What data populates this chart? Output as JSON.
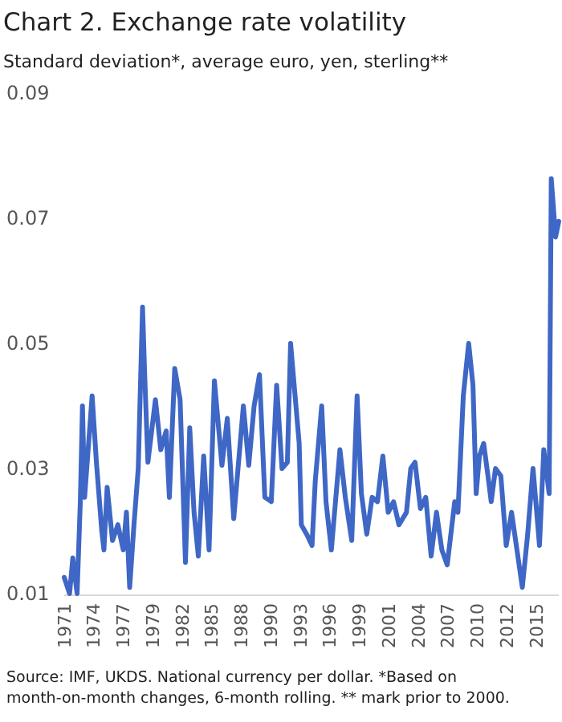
{
  "chart_data": {
    "type": "line",
    "title": "Chart 2. Exchange rate volatility",
    "subtitle": "Standard deviation*, average euro, yen, sterling**",
    "annotations": [
      "Source: IMF, UKDS. National currency  per dollar. *Based on month-on-month changes,  6-month rolling. ** mark prior to 2000."
    ],
    "xlim": [
      1971,
      2017.1
    ],
    "ylim": [
      0.01,
      0.09
    ],
    "yticks": [
      0.01,
      0.03,
      0.05,
      0.07,
      0.09
    ],
    "xticks": [
      {
        "value": 1971,
        "label": "1971"
      },
      {
        "value": 1973.75,
        "label": "1974"
      },
      {
        "value": 1976.5,
        "label": "1977"
      },
      {
        "value": 1979.25,
        "label": "1979"
      },
      {
        "value": 1982,
        "label": "1982"
      },
      {
        "value": 1984.75,
        "label": "1985"
      },
      {
        "value": 1987.5,
        "label": "1988"
      },
      {
        "value": 1990.25,
        "label": "1990"
      },
      {
        "value": 1993,
        "label": "1993"
      },
      {
        "value": 1995.75,
        "label": "1996"
      },
      {
        "value": 1998.5,
        "label": "1999"
      },
      {
        "value": 2001.25,
        "label": "2001"
      },
      {
        "value": 2004,
        "label": "2004"
      },
      {
        "value": 2006.75,
        "label": "2007"
      },
      {
        "value": 2009.5,
        "label": "2010"
      },
      {
        "value": 2012.25,
        "label": "2012"
      },
      {
        "value": 2015,
        "label": "2015"
      }
    ],
    "grid": false,
    "marker": "none",
    "line_style": "solid",
    "series": [
      {
        "color": "#3f67c6",
        "x": [
          1971.0,
          1971.5,
          1971.8,
          1972.2,
          1972.5,
          1972.7,
          1972.9,
          1973.6,
          1974.0,
          1974.5,
          1974.7,
          1975.0,
          1975.5,
          1976.0,
          1976.5,
          1976.8,
          1977.1,
          1977.5,
          1977.9,
          1978.3,
          1978.5,
          1978.8,
          1979.5,
          1980.0,
          1980.5,
          1980.8,
          1981.3,
          1981.8,
          1982.3,
          1982.7,
          1983.1,
          1983.5,
          1984.0,
          1984.5,
          1985.0,
          1985.7,
          1986.2,
          1986.8,
          1987.7,
          1988.2,
          1988.7,
          1989.2,
          1989.7,
          1990.3,
          1990.8,
          1991.3,
          1991.8,
          1992.1,
          1992.6,
          1992.9,
          1993.1,
          1993.6,
          1994.1,
          1994.4,
          1995.0,
          1995.4,
          1995.9,
          1996.7,
          1997.2,
          1997.8,
          1998.3,
          1998.7,
          1999.2,
          1999.7,
          2000.2,
          2000.7,
          2001.2,
          2001.7,
          2002.2,
          2002.9,
          2003.3,
          2003.7,
          2004.2,
          2004.7,
          2005.2,
          2005.7,
          2006.2,
          2006.7,
          2007.4,
          2007.7,
          2008.2,
          2008.7,
          2009.1,
          2009.4,
          2009.7,
          2010.1,
          2010.5,
          2010.8,
          2011.2,
          2011.7,
          2012.2,
          2012.7,
          2013.2,
          2013.7,
          2014.2,
          2014.7,
          2015.3,
          2015.7,
          2016.2,
          2016.4,
          2016.8,
          2017.1
        ],
        "values": [
          0.0126,
          0.01,
          0.0157,
          0.01,
          0.0247,
          0.04,
          0.0254,
          0.0416,
          0.031,
          0.02,
          0.017,
          0.027,
          0.0185,
          0.021,
          0.017,
          0.023,
          0.011,
          0.021,
          0.03,
          0.0558,
          0.045,
          0.031,
          0.041,
          0.033,
          0.036,
          0.0254,
          0.046,
          0.041,
          0.015,
          0.0365,
          0.023,
          0.016,
          0.032,
          0.017,
          0.044,
          0.0305,
          0.038,
          0.022,
          0.04,
          0.0305,
          0.04,
          0.045,
          0.0254,
          0.0247,
          0.0433,
          0.03,
          0.031,
          0.05,
          0.04,
          0.034,
          0.021,
          0.0195,
          0.0177,
          0.028,
          0.04,
          0.0247,
          0.017,
          0.033,
          0.0254,
          0.0185,
          0.0416,
          0.026,
          0.0195,
          0.0254,
          0.0247,
          0.032,
          0.023,
          0.0247,
          0.021,
          0.023,
          0.03,
          0.031,
          0.0236,
          0.0254,
          0.016,
          0.023,
          0.017,
          0.0146,
          0.0247,
          0.023,
          0.0416,
          0.05,
          0.0433,
          0.026,
          0.032,
          0.034,
          0.0288,
          0.0247,
          0.03,
          0.0288,
          0.0177,
          0.023,
          0.017,
          0.011,
          0.0195,
          0.03,
          0.0177,
          0.033,
          0.026,
          0.0763,
          0.067,
          0.0695
        ]
      }
    ]
  }
}
